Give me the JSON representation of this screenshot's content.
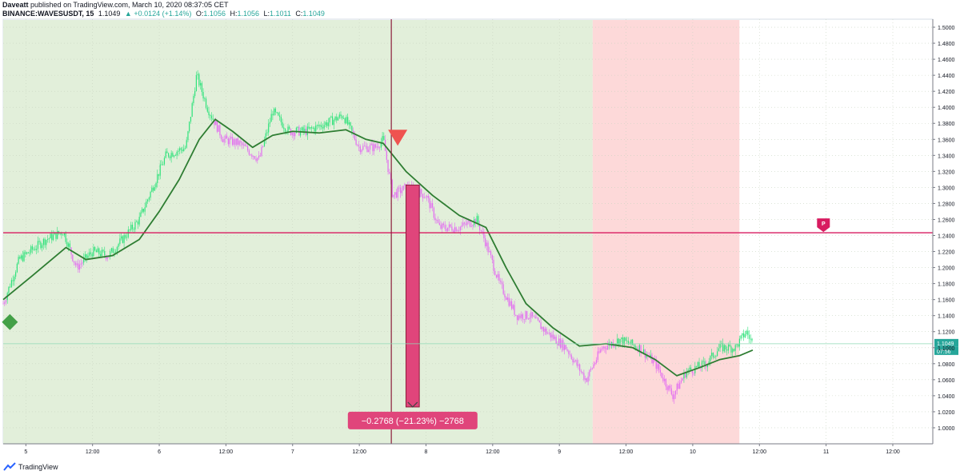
{
  "header": {
    "author": "Daveatt",
    "published_text": "published on TradingView.com, March 10, 2020 08:37:05 CET",
    "symbol": "BINANCE:WAVESUSDT, 15",
    "last": "1.1049",
    "change": "▲ +0.0124 (+1.14%)",
    "o_label": "O:",
    "o_value": "1.1056",
    "h_label": "H:",
    "h_value": "1.1056",
    "l_label": "L:",
    "l_value": "1.1011",
    "c_label": "C:",
    "c_value": "1.1049"
  },
  "footer": {
    "brand": "TradingView"
  },
  "colors": {
    "bg_green": "#e2efda",
    "bg_red": "#fdd9d9",
    "up_candle": "#2ee27a",
    "down_candle": "#e36cf0",
    "ma_line": "#2e7d32",
    "pivot_line": "#d81b60",
    "vertical_marker": "#8b1d3b",
    "arrow_red": "#ef5350",
    "measure_fill": "#e0457b",
    "price_tag": "#26a69a"
  },
  "chart_data": {
    "type": "candlestick",
    "symbol": "BINANCE:WAVESUSDT",
    "interval": "15",
    "ylim": [
      0.98,
      1.51
    ],
    "y_ticks": [
      "1.5000",
      "1.4800",
      "1.4600",
      "1.4400",
      "1.4200",
      "1.4000",
      "1.3800",
      "1.3600",
      "1.3400",
      "1.3200",
      "1.3000",
      "1.2800",
      "1.2600",
      "1.2400",
      "1.2200",
      "1.2000",
      "1.1800",
      "1.1600",
      "1.1400",
      "1.1200",
      "1.1000",
      "1.0800",
      "1.0600",
      "1.0400",
      "1.0200",
      "1.0000"
    ],
    "x_ticks": [
      {
        "label": "5",
        "t": 0.0
      },
      {
        "label": "12:00",
        "t": 0.5
      },
      {
        "label": "6",
        "t": 1.0
      },
      {
        "label": "12:00",
        "t": 1.5
      },
      {
        "label": "7",
        "t": 2.0
      },
      {
        "label": "12:00",
        "t": 2.5
      },
      {
        "label": "8",
        "t": 3.0
      },
      {
        "label": "12:00",
        "t": 3.5
      },
      {
        "label": "9",
        "t": 4.0
      },
      {
        "label": "12:00",
        "t": 4.5
      },
      {
        "label": "10",
        "t": 5.0
      },
      {
        "label": "12:00",
        "t": 5.5
      },
      {
        "label": "11",
        "t": 6.0
      },
      {
        "label": "12:00",
        "t": 6.5
      }
    ],
    "x_range": [
      -0.17,
      6.8
    ],
    "price_path": [
      [
        -0.17,
        1.155
      ],
      [
        -0.05,
        1.21
      ],
      [
        0.15,
        1.235
      ],
      [
        0.28,
        1.245
      ],
      [
        0.38,
        1.2
      ],
      [
        0.5,
        1.22
      ],
      [
        0.62,
        1.215
      ],
      [
        0.85,
        1.26
      ],
      [
        0.95,
        1.3
      ],
      [
        1.05,
        1.34
      ],
      [
        1.2,
        1.35
      ],
      [
        1.28,
        1.44
      ],
      [
        1.36,
        1.4
      ],
      [
        1.48,
        1.36
      ],
      [
        1.6,
        1.355
      ],
      [
        1.75,
        1.335
      ],
      [
        1.85,
        1.395
      ],
      [
        1.97,
        1.37
      ],
      [
        2.1,
        1.37
      ],
      [
        2.25,
        1.38
      ],
      [
        2.38,
        1.39
      ],
      [
        2.5,
        1.35
      ],
      [
        2.62,
        1.35
      ],
      [
        2.68,
        1.36
      ],
      [
        2.75,
        1.29
      ],
      [
        2.85,
        1.3
      ],
      [
        3.0,
        1.29
      ],
      [
        3.1,
        1.25
      ],
      [
        3.25,
        1.25
      ],
      [
        3.38,
        1.26
      ],
      [
        3.45,
        1.23
      ],
      [
        3.55,
        1.18
      ],
      [
        3.68,
        1.14
      ],
      [
        3.78,
        1.14
      ],
      [
        3.9,
        1.12
      ],
      [
        4.05,
        1.1
      ],
      [
        4.2,
        1.06
      ],
      [
        4.32,
        1.1
      ],
      [
        4.45,
        1.11
      ],
      [
        4.6,
        1.1
      ],
      [
        4.72,
        1.08
      ],
      [
        4.85,
        1.04
      ],
      [
        4.95,
        1.07
      ],
      [
        5.1,
        1.08
      ],
      [
        5.2,
        1.1
      ],
      [
        5.32,
        1.1
      ],
      [
        5.4,
        1.12
      ],
      [
        5.45,
        1.105
      ]
    ],
    "ma_path": [
      [
        -0.17,
        1.16
      ],
      [
        0.05,
        1.19
      ],
      [
        0.3,
        1.225
      ],
      [
        0.45,
        1.21
      ],
      [
        0.65,
        1.215
      ],
      [
        0.85,
        1.235
      ],
      [
        1.0,
        1.27
      ],
      [
        1.15,
        1.31
      ],
      [
        1.3,
        1.36
      ],
      [
        1.42,
        1.385
      ],
      [
        1.55,
        1.37
      ],
      [
        1.7,
        1.35
      ],
      [
        1.85,
        1.365
      ],
      [
        2.0,
        1.37
      ],
      [
        2.2,
        1.368
      ],
      [
        2.4,
        1.372
      ],
      [
        2.55,
        1.36
      ],
      [
        2.68,
        1.355
      ],
      [
        2.85,
        1.32
      ],
      [
        3.05,
        1.29
      ],
      [
        3.25,
        1.265
      ],
      [
        3.45,
        1.25
      ],
      [
        3.6,
        1.2
      ],
      [
        3.75,
        1.155
      ],
      [
        3.95,
        1.125
      ],
      [
        4.15,
        1.102
      ],
      [
        4.35,
        1.105
      ],
      [
        4.55,
        1.1
      ],
      [
        4.72,
        1.085
      ],
      [
        4.88,
        1.065
      ],
      [
        5.05,
        1.075
      ],
      [
        5.2,
        1.085
      ],
      [
        5.35,
        1.09
      ],
      [
        5.45,
        1.097
      ]
    ],
    "background_zones": [
      {
        "from": -0.17,
        "to": 4.25,
        "state": "bull"
      },
      {
        "from": 4.25,
        "to": 5.35,
        "state": "bear"
      }
    ],
    "pivot_level": 1.2434,
    "pivot_label": "P",
    "signal_vline_t": 2.74,
    "sell_signal": {
      "t": 2.74,
      "price": 1.362
    },
    "buy_signal": {
      "t": -0.12,
      "price": 1.132
    },
    "measurement": {
      "from_t": 2.85,
      "to_t": 2.95,
      "start_price": 1.303,
      "end_price": 1.026,
      "label": "−0.2768 (−21.23%) −2768"
    },
    "last_price": {
      "value": 1.1049,
      "label": "1.1049",
      "countdown": "07:56"
    }
  }
}
